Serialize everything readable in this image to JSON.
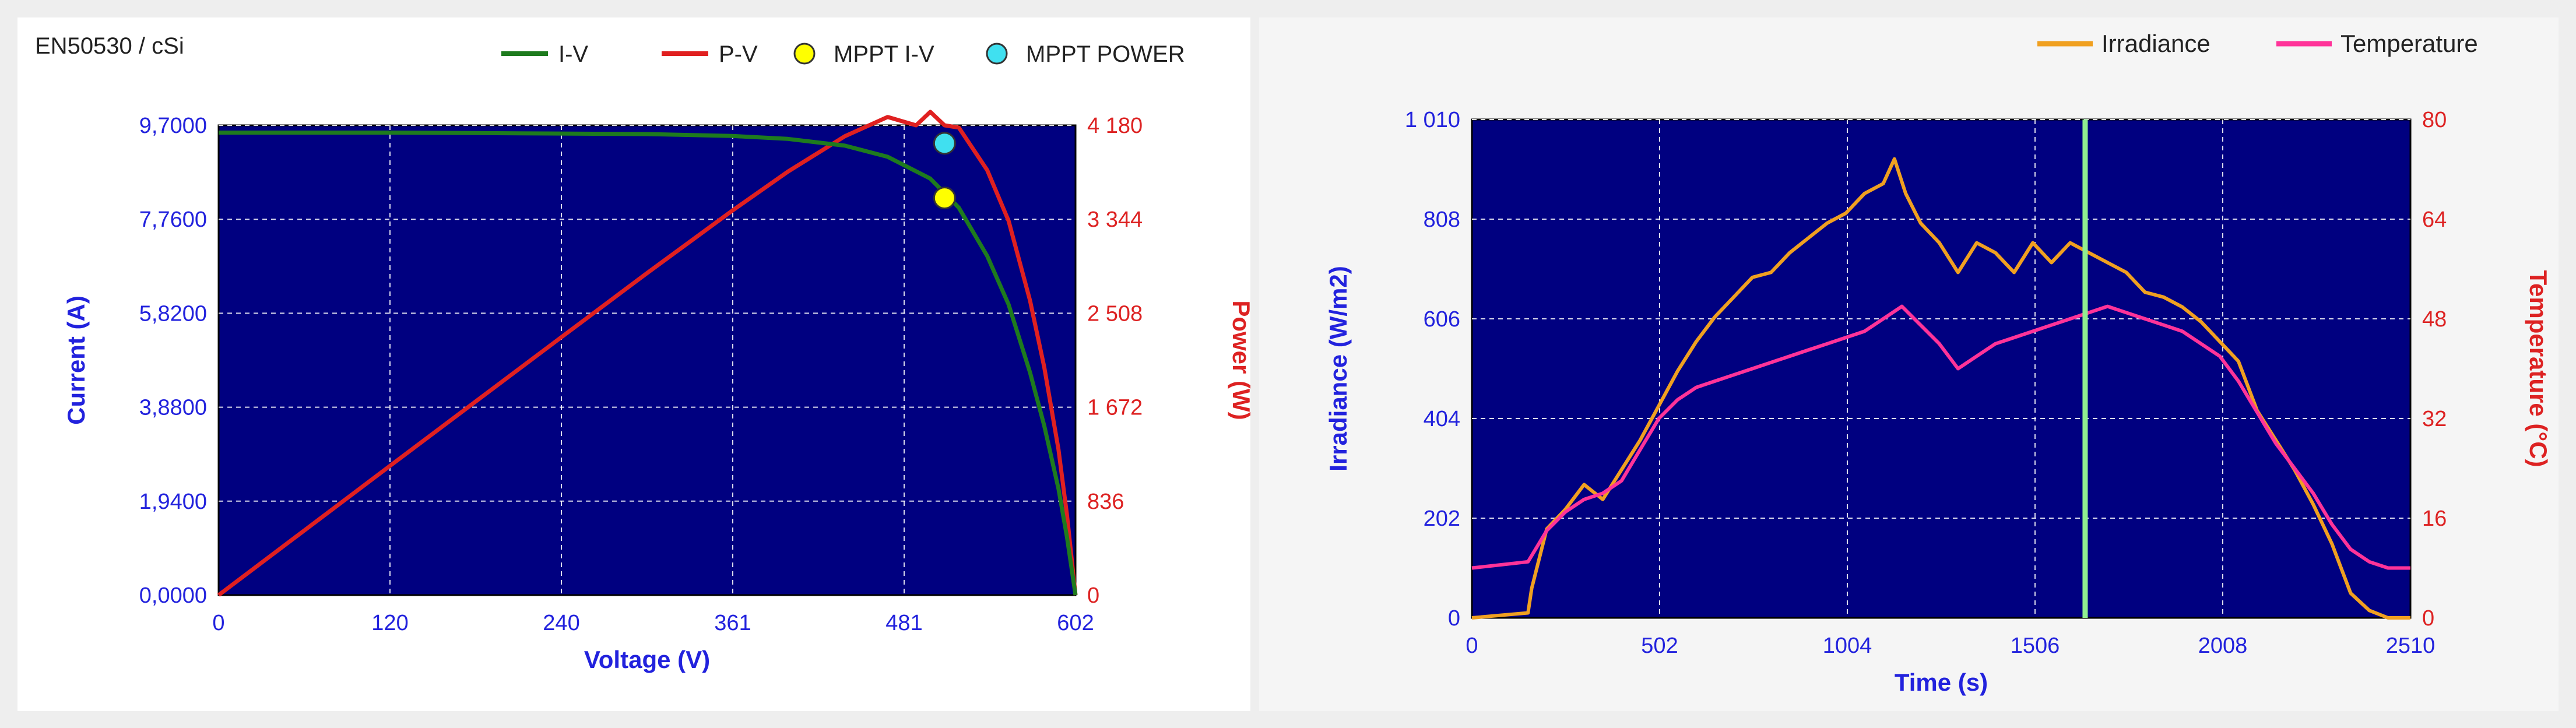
{
  "chart_data": [
    {
      "type": "line",
      "title": "EN50530 / cSi",
      "xlabel": "Voltage (V)",
      "ylabel": "Current (A)",
      "y2label": "Power (W)",
      "xlim": [
        0,
        602
      ],
      "ylim": [
        0,
        9.7
      ],
      "y2lim": [
        0,
        4180
      ],
      "x_ticks": [
        "0",
        "120",
        "240",
        "361",
        "481",
        "602"
      ],
      "y_ticks": [
        "0,0000",
        "1,9400",
        "3,8800",
        "5,8200",
        "7,7600",
        "9,7000"
      ],
      "y2_ticks": [
        "0",
        "836",
        "1 672",
        "2 508",
        "3 344",
        "4 180"
      ],
      "legend": [
        "I-V",
        "P-V",
        "MPPT I-V",
        "MPPT POWER"
      ],
      "legend_position": "top",
      "grid": true,
      "background": "#000080",
      "colors": {
        "iv": "#1e7b1e",
        "pv": "#e02020",
        "mppt_iv": "#ffff00",
        "mppt_power": "#40e0f0"
      },
      "series": [
        {
          "name": "I-V",
          "axis": "left",
          "x": [
            0,
            60,
            120,
            180,
            240,
            300,
            361,
            400,
            440,
            470,
            500,
            520,
            540,
            555,
            570,
            580,
            590,
            596,
            600,
            602
          ],
          "y": [
            9.55,
            9.55,
            9.55,
            9.54,
            9.53,
            9.52,
            9.48,
            9.42,
            9.28,
            9.05,
            8.6,
            8.0,
            7.0,
            6.0,
            4.6,
            3.5,
            2.2,
            1.2,
            0.4,
            0
          ]
        },
        {
          "name": "P-V",
          "axis": "right",
          "x": [
            0,
            60,
            120,
            180,
            240,
            300,
            361,
            400,
            440,
            470,
            490,
            500,
            510,
            520,
            540,
            555,
            570,
            580,
            590,
            596,
            600,
            602
          ],
          "y": [
            0,
            573,
            1146,
            1717,
            2287,
            2856,
            3422,
            3768,
            4083,
            4254,
            4180,
            4300,
            4180,
            4160,
            3780,
            3330,
            2622,
            2030,
            1298,
            715,
            240,
            0
          ]
        },
        {
          "name": "MPPT I-V",
          "axis": "left",
          "x": [
            510
          ],
          "y": [
            8.2
          ]
        },
        {
          "name": "MPPT POWER",
          "axis": "right",
          "x": [
            510
          ],
          "y": [
            4020
          ]
        }
      ]
    },
    {
      "type": "line",
      "xlabel": "Time (s)",
      "ylabel": "Irradiance (W/m2)",
      "y2label": "Temperature (°C)",
      "xlim": [
        0,
        2510
      ],
      "ylim": [
        0,
        1010
      ],
      "y2lim": [
        0,
        80
      ],
      "x_ticks": [
        "0",
        "502",
        "1004",
        "1506",
        "2008",
        "2510"
      ],
      "y_ticks": [
        "0",
        "202",
        "404",
        "606",
        "808",
        "1 010"
      ],
      "y2_ticks": [
        "0",
        "16",
        "32",
        "48",
        "64",
        "80"
      ],
      "legend": [
        "Irradiance",
        "Temperature"
      ],
      "legend_position": "top-right",
      "grid": true,
      "background": "#000080",
      "cursor_x": 1640,
      "colors": {
        "irradiance": "#f0a020",
        "temperature": "#ff3399",
        "cursor": "#90ee90"
      },
      "series": [
        {
          "name": "Irradiance",
          "axis": "left",
          "x": [
            0,
            150,
            160,
            200,
            250,
            300,
            350,
            400,
            450,
            500,
            550,
            600,
            650,
            700,
            750,
            800,
            850,
            900,
            950,
            1000,
            1050,
            1100,
            1130,
            1160,
            1200,
            1250,
            1300,
            1350,
            1400,
            1450,
            1500,
            1550,
            1600,
            1650,
            1700,
            1750,
            1800,
            1850,
            1900,
            1950,
            2000,
            2050,
            2100,
            2150,
            2200,
            2250,
            2300,
            2350,
            2400,
            2450,
            2510
          ],
          "y": [
            0,
            10,
            60,
            180,
            220,
            270,
            240,
            300,
            360,
            430,
            500,
            560,
            610,
            650,
            690,
            700,
            740,
            770,
            800,
            820,
            860,
            880,
            930,
            860,
            800,
            760,
            700,
            760,
            740,
            700,
            760,
            720,
            760,
            740,
            720,
            700,
            660,
            650,
            630,
            600,
            560,
            520,
            420,
            360,
            300,
            230,
            150,
            50,
            15,
            0,
            0
          ]
        },
        {
          "name": "Temperature",
          "axis": "right",
          "x": [
            0,
            150,
            200,
            250,
            300,
            350,
            400,
            450,
            500,
            550,
            600,
            650,
            700,
            750,
            800,
            850,
            900,
            950,
            1000,
            1050,
            1100,
            1150,
            1200,
            1250,
            1300,
            1350,
            1400,
            1450,
            1500,
            1550,
            1600,
            1650,
            1700,
            1750,
            1800,
            1850,
            1900,
            1950,
            2000,
            2050,
            2100,
            2150,
            2200,
            2250,
            2300,
            2350,
            2400,
            2450,
            2510
          ],
          "y": [
            8,
            9,
            14,
            17,
            19,
            20,
            22,
            27,
            32,
            35,
            37,
            38,
            39,
            40,
            41,
            42,
            43,
            44,
            45,
            46,
            48,
            50,
            47,
            44,
            40,
            42,
            44,
            45,
            46,
            47,
            48,
            49,
            50,
            49,
            48,
            47,
            46,
            44,
            42,
            38,
            33,
            28,
            24,
            20,
            15,
            11,
            9,
            8,
            8
          ]
        }
      ]
    }
  ]
}
